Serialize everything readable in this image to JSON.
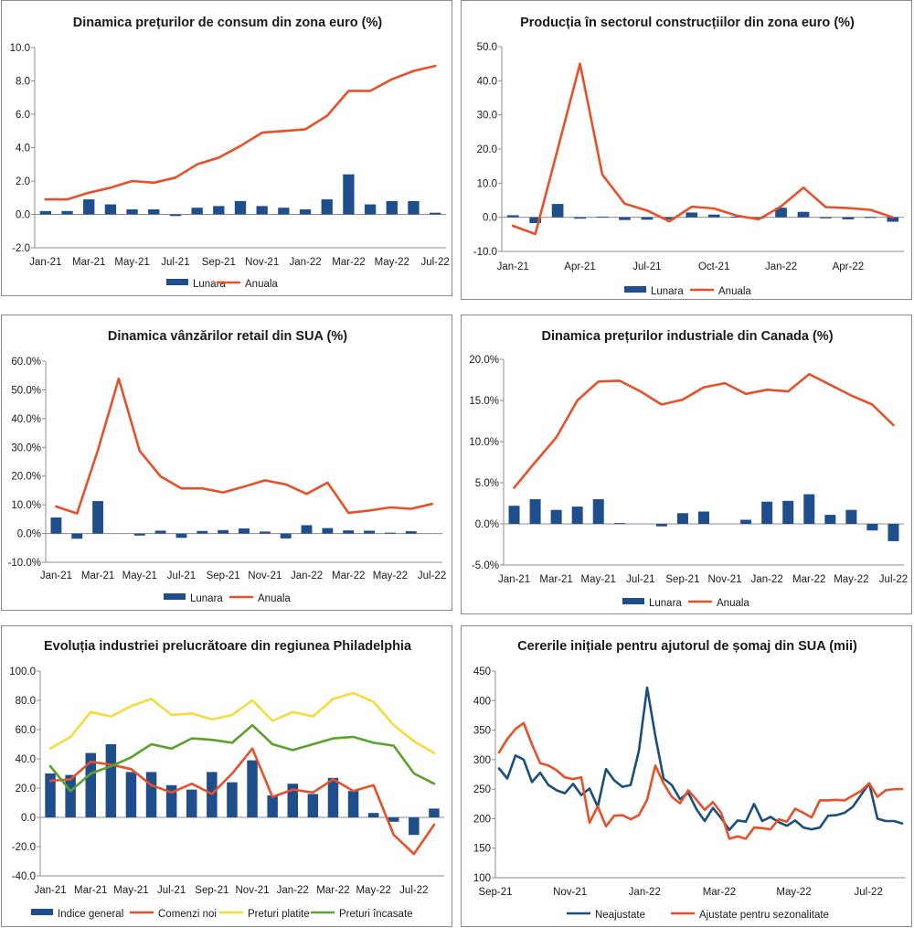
{
  "colors": {
    "bar": "#1f4e8c",
    "orange": "#e8502a",
    "yellow": "#f5dc3c",
    "green": "#5ba12b",
    "navy": "#1a4f7a",
    "axis": "#8c8c8c"
  },
  "chart_data": [
    {
      "type": "bar+line",
      "title": "Dinamica prețurilor de consum din zona euro (%)",
      "categories": [
        "Jan-21",
        "Feb-21",
        "Mar-21",
        "Apr-21",
        "May-21",
        "Jun-21",
        "Jul-21",
        "Aug-21",
        "Sep-21",
        "Oct-21",
        "Nov-21",
        "Dec-21",
        "Jan-22",
        "Feb-22",
        "Mar-22",
        "Apr-22",
        "May-22",
        "Jun-22",
        "Jul-22"
      ],
      "xticks": [
        "Jan-21",
        "Mar-21",
        "May-21",
        "Jul-21",
        "Sep-21",
        "Nov-21",
        "Jan-22",
        "Mar-22",
        "May-22",
        "Jul-22"
      ],
      "yticks": [
        "-2.0",
        "0.0",
        "2.0",
        "4.0",
        "6.0",
        "8.0",
        "10.0"
      ],
      "ylim": [
        -2,
        10
      ],
      "series": [
        {
          "name": "Lunara",
          "kind": "bar",
          "values": [
            0.2,
            0.2,
            0.9,
            0.6,
            0.3,
            0.3,
            -0.1,
            0.4,
            0.5,
            0.8,
            0.5,
            0.4,
            0.3,
            0.9,
            2.4,
            0.6,
            0.8,
            0.8,
            0.1
          ]
        },
        {
          "name": "Anuala",
          "kind": "line",
          "values": [
            0.9,
            0.9,
            1.3,
            1.6,
            2.0,
            1.9,
            2.2,
            3.0,
            3.4,
            4.1,
            4.9,
            5.0,
            5.1,
            5.9,
            7.4,
            7.4,
            8.1,
            8.6,
            8.9
          ]
        }
      ]
    },
    {
      "type": "bar+line",
      "title": "Producția în sectorul construcțiilor din zona euro (%)",
      "categories": [
        "Jan-21",
        "Feb-21",
        "Mar-21",
        "Apr-21",
        "May-21",
        "Jun-21",
        "Jul-21",
        "Aug-21",
        "Sep-21",
        "Oct-21",
        "Nov-21",
        "Dec-21",
        "Jan-22",
        "Feb-22",
        "Mar-22",
        "Apr-22",
        "May-22",
        "Jun-22"
      ],
      "xticks": [
        "Jan-21",
        "Apr-21",
        "Jul-21",
        "Oct-21",
        "Jan-22",
        "Apr-22"
      ],
      "yticks": [
        "-10.0",
        "0.0",
        "10.0",
        "20.0",
        "30.0",
        "40.0",
        "50.0"
      ],
      "ylim": [
        -10,
        50
      ],
      "series": [
        {
          "name": "Lunara",
          "kind": "bar",
          "values": [
            0.6,
            -1.7,
            3.9,
            -0.4,
            0.2,
            -0.8,
            -0.7,
            -0.6,
            1.4,
            0.8,
            0.2,
            -0.3,
            2.8,
            1.6,
            -0.3,
            -0.6,
            0.1,
            -1.3
          ]
        },
        {
          "name": "Anuala",
          "kind": "line",
          "values": [
            -2.5,
            -4.9,
            19.9,
            45.0,
            12.5,
            4.0,
            2.0,
            -1.2,
            3.1,
            2.6,
            0.5,
            -0.6,
            3.2,
            8.7,
            3.0,
            2.7,
            2.2,
            0.0
          ]
        }
      ]
    },
    {
      "type": "bar+line",
      "title": "Dinamica vânzărilor retail din SUA (%)",
      "categories": [
        "Jan-21",
        "Feb-21",
        "Mar-21",
        "Apr-21",
        "May-21",
        "Jun-21",
        "Jul-21",
        "Aug-21",
        "Sep-21",
        "Oct-21",
        "Nov-21",
        "Dec-21",
        "Jan-22",
        "Feb-22",
        "Mar-22",
        "Apr-22",
        "May-22",
        "Jun-22",
        "Jul-22"
      ],
      "xticks": [
        "Jan-21",
        "Mar-21",
        "May-21",
        "Jul-21",
        "Sep-21",
        "Nov-21",
        "Jan-22",
        "Mar-22",
        "May-22",
        "Jul-22"
      ],
      "yticks": [
        "-10.0%",
        "0.0%",
        "10.0%",
        "20.0%",
        "30.0%",
        "40.0%",
        "50.0%",
        "60.0%"
      ],
      "ylim": [
        -10,
        60
      ],
      "series": [
        {
          "name": "Lunara",
          "kind": "bar",
          "values": [
            5.6,
            -1.8,
            11.3,
            0.0,
            -0.7,
            1.0,
            -1.5,
            0.9,
            1.2,
            1.8,
            0.7,
            -1.7,
            2.9,
            1.9,
            1.1,
            1.0,
            0.3,
            0.8,
            0.0
          ]
        },
        {
          "name": "Anuala",
          "kind": "line",
          "values": [
            9.4,
            7.0,
            29.0,
            53.9,
            28.8,
            19.9,
            15.7,
            15.7,
            14.3,
            16.3,
            18.5,
            17.1,
            13.8,
            17.7,
            7.2,
            8.0,
            9.1,
            8.6,
            10.3
          ]
        }
      ]
    },
    {
      "type": "bar+line",
      "title": "Dinamica prețurilor industriale din Canada (%)",
      "categories": [
        "Jan-21",
        "Feb-21",
        "Mar-21",
        "Apr-21",
        "May-21",
        "Jun-21",
        "Jul-21",
        "Aug-21",
        "Sep-21",
        "Oct-21",
        "Nov-21",
        "Dec-21",
        "Jan-22",
        "Feb-22",
        "Mar-22",
        "Apr-22",
        "May-22",
        "Jun-22",
        "Jul-22"
      ],
      "xticks": [
        "Jan-21",
        "Mar-21",
        "May-21",
        "Jul-21",
        "Sep-21",
        "Nov-21",
        "Jan-22",
        "Mar-22",
        "May-22",
        "Jul-22"
      ],
      "yticks": [
        "-5.0%",
        "0.0%",
        "5.0%",
        "10.0%",
        "15.0%",
        "20.0%"
      ],
      "ylim": [
        -5,
        20
      ],
      "series": [
        {
          "name": "Lunara",
          "kind": "bar",
          "values": [
            2.2,
            3.0,
            1.7,
            2.1,
            3.0,
            0.1,
            0.0,
            -0.3,
            1.3,
            1.5,
            0.0,
            0.5,
            2.7,
            2.8,
            3.6,
            1.1,
            1.7,
            -0.8,
            -2.1
          ]
        },
        {
          "name": "Anuala",
          "kind": "line",
          "values": [
            4.4,
            7.5,
            10.5,
            15.0,
            17.3,
            17.4,
            16.1,
            14.5,
            15.1,
            16.6,
            17.1,
            15.8,
            16.3,
            16.1,
            18.2,
            16.9,
            15.6,
            14.5,
            12.0
          ]
        }
      ]
    },
    {
      "type": "bar+line",
      "title": "Evoluția industriei prelucrătoare din regiunea Philadelphia",
      "categories": [
        "Jan-21",
        "Feb-21",
        "Mar-21",
        "Apr-21",
        "May-21",
        "Jun-21",
        "Jul-21",
        "Aug-21",
        "Sep-21",
        "Oct-21",
        "Nov-21",
        "Dec-21",
        "Jan-22",
        "Feb-22",
        "Mar-22",
        "Apr-22",
        "May-22",
        "Jun-22",
        "Jul-22",
        "Aug-22"
      ],
      "xticks": [
        "Jan-21",
        "Mar-21",
        "May-21",
        "Jul-21",
        "Sep-21",
        "Nov-21",
        "Jan-22",
        "Mar-22",
        "May-22",
        "Jul-22"
      ],
      "yticks": [
        "-40.0",
        "-20.0",
        "0.0",
        "20.0",
        "40.0",
        "60.0",
        "80.0",
        "100.0"
      ],
      "ylim": [
        -40,
        100
      ],
      "series": [
        {
          "name": "Indice general",
          "kind": "bar",
          "values": [
            30,
            29,
            44,
            50,
            31,
            31,
            22,
            19,
            31,
            24,
            39,
            15,
            23,
            16,
            27,
            18,
            3,
            -3,
            -12,
            6
          ]
        },
        {
          "name": "Comenzi noi",
          "kind": "line",
          "values": [
            25,
            26,
            38,
            36,
            33,
            22,
            17,
            23,
            16,
            30,
            47,
            14,
            19,
            17,
            26,
            18,
            22,
            -12,
            -25,
            -5
          ]
        },
        {
          "name": "Preturi platite",
          "kind": "line",
          "values": [
            47,
            55,
            72,
            69,
            76,
            81,
            70,
            71,
            67,
            70,
            80,
            66,
            72,
            69,
            81,
            85,
            79,
            63,
            52,
            44
          ]
        },
        {
          "name": "Preturi încasate",
          "kind": "line",
          "values": [
            35,
            18,
            30,
            35,
            41,
            50,
            47,
            54,
            53,
            51,
            63,
            50,
            46,
            50,
            54,
            55,
            51,
            49,
            30,
            23
          ]
        }
      ]
    },
    {
      "type": "line",
      "title": "Cererile inițiale pentru ajutorul de șomaj din SUA (mii)",
      "xticks": [
        "Sep-21",
        "Nov-21",
        "Jan-22",
        "Mar-22",
        "May-22",
        "Jul-22"
      ],
      "yticks": [
        "100",
        "150",
        "200",
        "250",
        "300",
        "350",
        "400",
        "450"
      ],
      "ylim": [
        100,
        450
      ],
      "weeks": 50,
      "series": [
        {
          "name": "Neajustate",
          "kind": "line",
          "values": [
            285,
            268,
            307,
            300,
            262,
            278,
            257,
            248,
            243,
            259,
            240,
            251,
            220,
            284,
            265,
            254,
            257,
            315,
            422,
            340,
            268,
            257,
            233,
            244,
            216,
            196,
            218,
            201,
            181,
            197,
            195,
            225,
            196,
            203,
            194,
            188,
            197,
            185,
            182,
            185,
            205,
            206,
            210,
            220,
            240,
            260,
            200,
            196,
            196,
            192
          ]
        },
        {
          "name": "Ajustate pentru sezonalitate",
          "kind": "line",
          "values": [
            312,
            335,
            352,
            362,
            326,
            294,
            290,
            282,
            270,
            267,
            270,
            193,
            221,
            187,
            205,
            206,
            199,
            206,
            232,
            290,
            260,
            237,
            226,
            248,
            232,
            215,
            228,
            210,
            166,
            170,
            166,
            185,
            184,
            182,
            199,
            195,
            217,
            210,
            202,
            231,
            231,
            232,
            231,
            239,
            247,
            260,
            237,
            248,
            250,
            250
          ]
        }
      ]
    }
  ]
}
